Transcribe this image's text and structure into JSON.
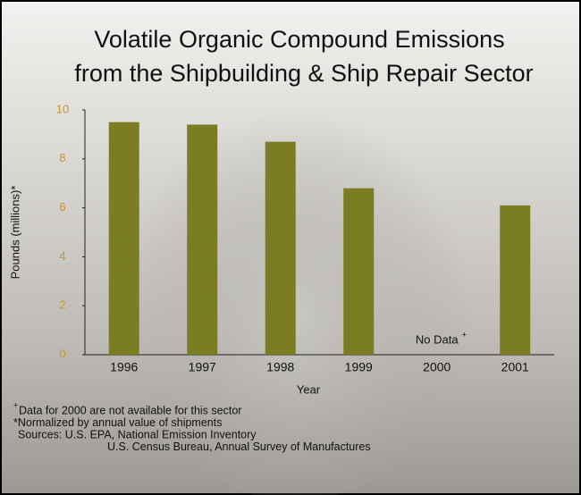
{
  "chart_data": {
    "type": "bar",
    "title": [
      "Volatile Organic Compound Emissions",
      "from the Shipbuilding & Ship Repair Sector"
    ],
    "x_label": "Year",
    "y_label": "Pounds (millions)*",
    "categories": [
      "1996",
      "1997",
      "1998",
      "1999",
      "2000",
      "2001"
    ],
    "values": [
      9.5,
      9.4,
      8.7,
      6.8,
      null,
      6.1
    ],
    "color": "#7b7d22",
    "tick_color": "#c8962a",
    "ylim": [
      0,
      10
    ],
    "yticks": [
      0,
      2,
      4,
      6,
      8,
      10
    ],
    "annotation": "No Data",
    "note_mark": "+",
    "footnotes": [
      "Data for 2000 are not available for this sector",
      "*Normalized by annual value of shipments",
      "Sources: U.S. EPA, National Emission Inventory",
      "U.S. Census Bureau, Annual Survey of Manufactures"
    ]
  }
}
